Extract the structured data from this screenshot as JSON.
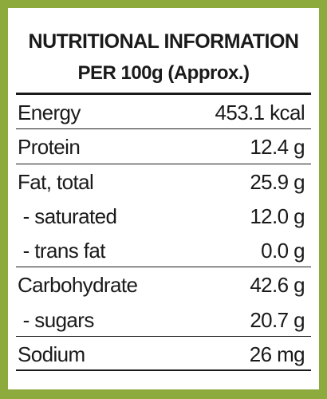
{
  "header": {
    "title": "NUTRITIONAL INFORMATION",
    "subtitle": "PER 100g (Approx.)"
  },
  "table": {
    "rows": [
      [
        "Energy",
        "453.1 kcal"
      ],
      [
        "Protein",
        "12.4 g"
      ],
      [
        "Fat, total",
        "25.9 g"
      ],
      [
        " - saturated",
        "12.0 g"
      ],
      [
        " - trans fat",
        "0.0 g"
      ],
      [
        "Carbohydrate",
        "42.6 g"
      ],
      [
        " - sugars",
        "20.7 g"
      ],
      [
        "Sodium",
        "26 mg"
      ]
    ]
  }
}
